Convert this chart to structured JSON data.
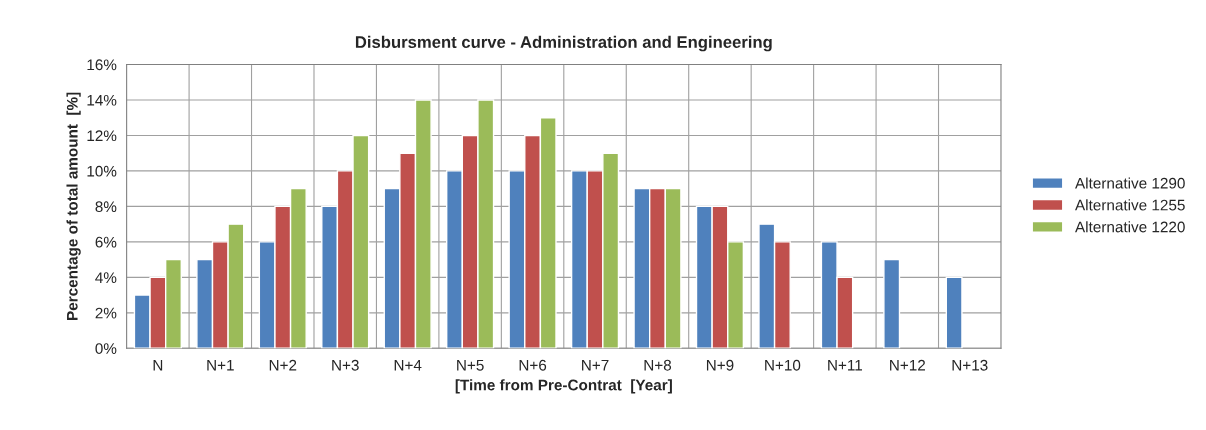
{
  "chart_data": {
    "type": "bar",
    "title": "Disbursment curve - Administration and Engineering",
    "xlabel": "[Time from Pre-Contrat  [Year]",
    "ylabel": "Percentage of total amount  [%]",
    "categories": [
      "N",
      "N+1",
      "N+2",
      "N+3",
      "N+4",
      "N+5",
      "N+6",
      "N+7",
      "N+8",
      "N+9",
      "N+10",
      "N+11",
      "N+12",
      "N+13"
    ],
    "series": [
      {
        "name": "Alternative 1290",
        "color": "#4f81bd",
        "values": [
          3,
          5,
          6,
          8,
          9,
          10,
          10,
          10,
          9,
          8,
          7,
          6,
          5,
          4
        ]
      },
      {
        "name": "Alternative 1255",
        "color": "#c0504d",
        "values": [
          4,
          6,
          8,
          10,
          11,
          12,
          12,
          10,
          9,
          8,
          6,
          4,
          null,
          null
        ]
      },
      {
        "name": "Alternative 1220",
        "color": "#9bbb59",
        "values": [
          5,
          7,
          9,
          12,
          14,
          14,
          13,
          11,
          9,
          6,
          null,
          null,
          null,
          null
        ]
      }
    ],
    "ylim": [
      0,
      16
    ],
    "yticks": [
      {
        "value": 0,
        "label": "0%"
      },
      {
        "value": 2,
        "label": "2%"
      },
      {
        "value": 4,
        "label": "4%"
      },
      {
        "value": 6,
        "label": "6%"
      },
      {
        "value": 8,
        "label": "8%"
      },
      {
        "value": 10,
        "label": "10%"
      },
      {
        "value": 12,
        "label": "12%"
      },
      {
        "value": 14,
        "label": "14%"
      },
      {
        "value": 16,
        "label": "16%"
      }
    ],
    "grid": true,
    "legend": "right"
  }
}
